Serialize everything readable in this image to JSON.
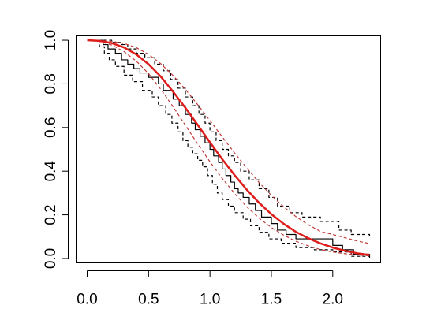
{
  "chart_data": {
    "type": "line",
    "title": "",
    "xlabel": "",
    "ylabel": "",
    "xlim": [
      -0.09,
      2.39
    ],
    "ylim": [
      -0.02,
      1.02
    ],
    "grid": false,
    "legend": "none",
    "x_ticks": [
      0.0,
      0.5,
      1.0,
      1.5,
      2.0
    ],
    "x_tick_labels": [
      "0.0",
      "0.5",
      "1.0",
      "1.5",
      "2.0"
    ],
    "y_ticks": [
      0.0,
      0.2,
      0.4,
      0.6,
      0.8,
      1.0
    ],
    "y_tick_labels": [
      "0.0",
      "0.2",
      "0.4",
      "0.6",
      "0.8",
      "1.0"
    ],
    "series": [
      {
        "style": "solid",
        "color": "#dd1c1c",
        "width": 2.5,
        "x": [
          0.0,
          0.1,
          0.2,
          0.3,
          0.4,
          0.5,
          0.6,
          0.7,
          0.8,
          0.9,
          1.0,
          1.1,
          1.2,
          1.3,
          1.4,
          1.5,
          1.6,
          1.7,
          1.8,
          1.9,
          2.0,
          2.1,
          2.2,
          2.3
        ],
        "y": [
          1.0,
          0.997,
          0.987,
          0.967,
          0.935,
          0.89,
          0.833,
          0.764,
          0.69,
          0.612,
          0.532,
          0.455,
          0.382,
          0.315,
          0.255,
          0.203,
          0.159,
          0.122,
          0.093,
          0.069,
          0.05,
          0.035,
          0.024,
          0.016
        ]
      },
      {
        "style": "dashed",
        "color": "#c23a3a",
        "width": 1.2,
        "x": [
          0.0,
          0.1,
          0.2,
          0.3,
          0.4,
          0.5,
          0.6,
          0.7,
          0.8,
          0.9,
          1.0,
          1.1,
          1.2,
          1.3,
          1.4,
          1.5,
          1.6,
          1.7,
          1.8,
          1.9,
          2.0,
          2.1,
          2.2,
          2.3
        ],
        "y": [
          1.0,
          0.999,
          0.995,
          0.985,
          0.966,
          0.935,
          0.892,
          0.838,
          0.775,
          0.705,
          0.632,
          0.557,
          0.484,
          0.414,
          0.348,
          0.289,
          0.237,
          0.192,
          0.155,
          0.124,
          0.11,
          0.095,
          0.08,
          0.068
        ]
      },
      {
        "style": "dashed",
        "color": "#c23a3a",
        "width": 1.2,
        "x": [
          0.0,
          0.1,
          0.2,
          0.3,
          0.4,
          0.5,
          0.6,
          0.7,
          0.8,
          0.9,
          1.0,
          1.1,
          1.2,
          1.3,
          1.4,
          1.5,
          1.6,
          1.7,
          1.8,
          1.9,
          2.0,
          2.1,
          2.2,
          2.3
        ],
        "y": [
          1.0,
          0.995,
          0.978,
          0.948,
          0.904,
          0.847,
          0.775,
          0.695,
          0.61,
          0.525,
          0.443,
          0.367,
          0.298,
          0.237,
          0.185,
          0.142,
          0.107,
          0.079,
          0.058,
          0.041,
          0.03,
          0.022,
          0.016,
          0.012
        ]
      },
      {
        "style": "solid-step",
        "color": "#000000",
        "width": 1.2,
        "x": [
          0.0,
          0.13,
          0.17,
          0.23,
          0.28,
          0.33,
          0.38,
          0.43,
          0.5,
          0.58,
          0.62,
          0.7,
          0.75,
          0.8,
          0.85,
          0.88,
          0.92,
          0.96,
          1.0,
          1.03,
          1.07,
          1.1,
          1.13,
          1.17,
          1.2,
          1.23,
          1.27,
          1.32,
          1.37,
          1.42,
          1.5,
          1.55,
          1.62,
          1.7,
          1.8,
          2.0,
          2.08,
          2.17,
          2.3
        ],
        "y": [
          1.0,
          0.98,
          0.96,
          0.94,
          0.91,
          0.89,
          0.87,
          0.85,
          0.83,
          0.8,
          0.77,
          0.73,
          0.7,
          0.66,
          0.62,
          0.59,
          0.56,
          0.53,
          0.5,
          0.47,
          0.44,
          0.41,
          0.38,
          0.35,
          0.32,
          0.3,
          0.28,
          0.25,
          0.22,
          0.19,
          0.16,
          0.13,
          0.11,
          0.09,
          0.09,
          0.06,
          0.04,
          0.02,
          0.01
        ]
      },
      {
        "style": "dashed-step",
        "color": "#000000",
        "width": 1.2,
        "x": [
          0.0,
          0.2,
          0.27,
          0.33,
          0.4,
          0.47,
          0.55,
          0.62,
          0.68,
          0.74,
          0.8,
          0.86,
          0.91,
          0.96,
          1.0,
          1.05,
          1.1,
          1.15,
          1.2,
          1.25,
          1.32,
          1.4,
          1.48,
          1.55,
          1.65,
          1.75,
          1.9,
          2.05,
          2.15,
          2.3
        ],
        "y": [
          1.0,
          0.99,
          0.98,
          0.96,
          0.94,
          0.92,
          0.89,
          0.86,
          0.82,
          0.78,
          0.74,
          0.7,
          0.66,
          0.62,
          0.58,
          0.54,
          0.5,
          0.47,
          0.44,
          0.4,
          0.36,
          0.32,
          0.28,
          0.24,
          0.21,
          0.19,
          0.17,
          0.13,
          0.11,
          0.1
        ]
      },
      {
        "style": "dashed-step",
        "color": "#000000",
        "width": 1.2,
        "x": [
          0.0,
          0.1,
          0.14,
          0.18,
          0.23,
          0.3,
          0.37,
          0.45,
          0.53,
          0.58,
          0.64,
          0.69,
          0.74,
          0.78,
          0.82,
          0.86,
          0.9,
          0.94,
          0.98,
          1.02,
          1.06,
          1.1,
          1.15,
          1.2,
          1.27,
          1.33,
          1.4,
          1.48,
          1.58,
          1.7,
          1.85,
          2.0,
          2.15,
          2.3
        ],
        "y": [
          1.0,
          0.97,
          0.94,
          0.91,
          0.88,
          0.84,
          0.81,
          0.77,
          0.74,
          0.7,
          0.66,
          0.62,
          0.58,
          0.54,
          0.51,
          0.48,
          0.45,
          0.42,
          0.38,
          0.34,
          0.3,
          0.27,
          0.24,
          0.21,
          0.18,
          0.15,
          0.12,
          0.09,
          0.07,
          0.05,
          0.04,
          0.03,
          0.01,
          0.0
        ]
      }
    ]
  }
}
